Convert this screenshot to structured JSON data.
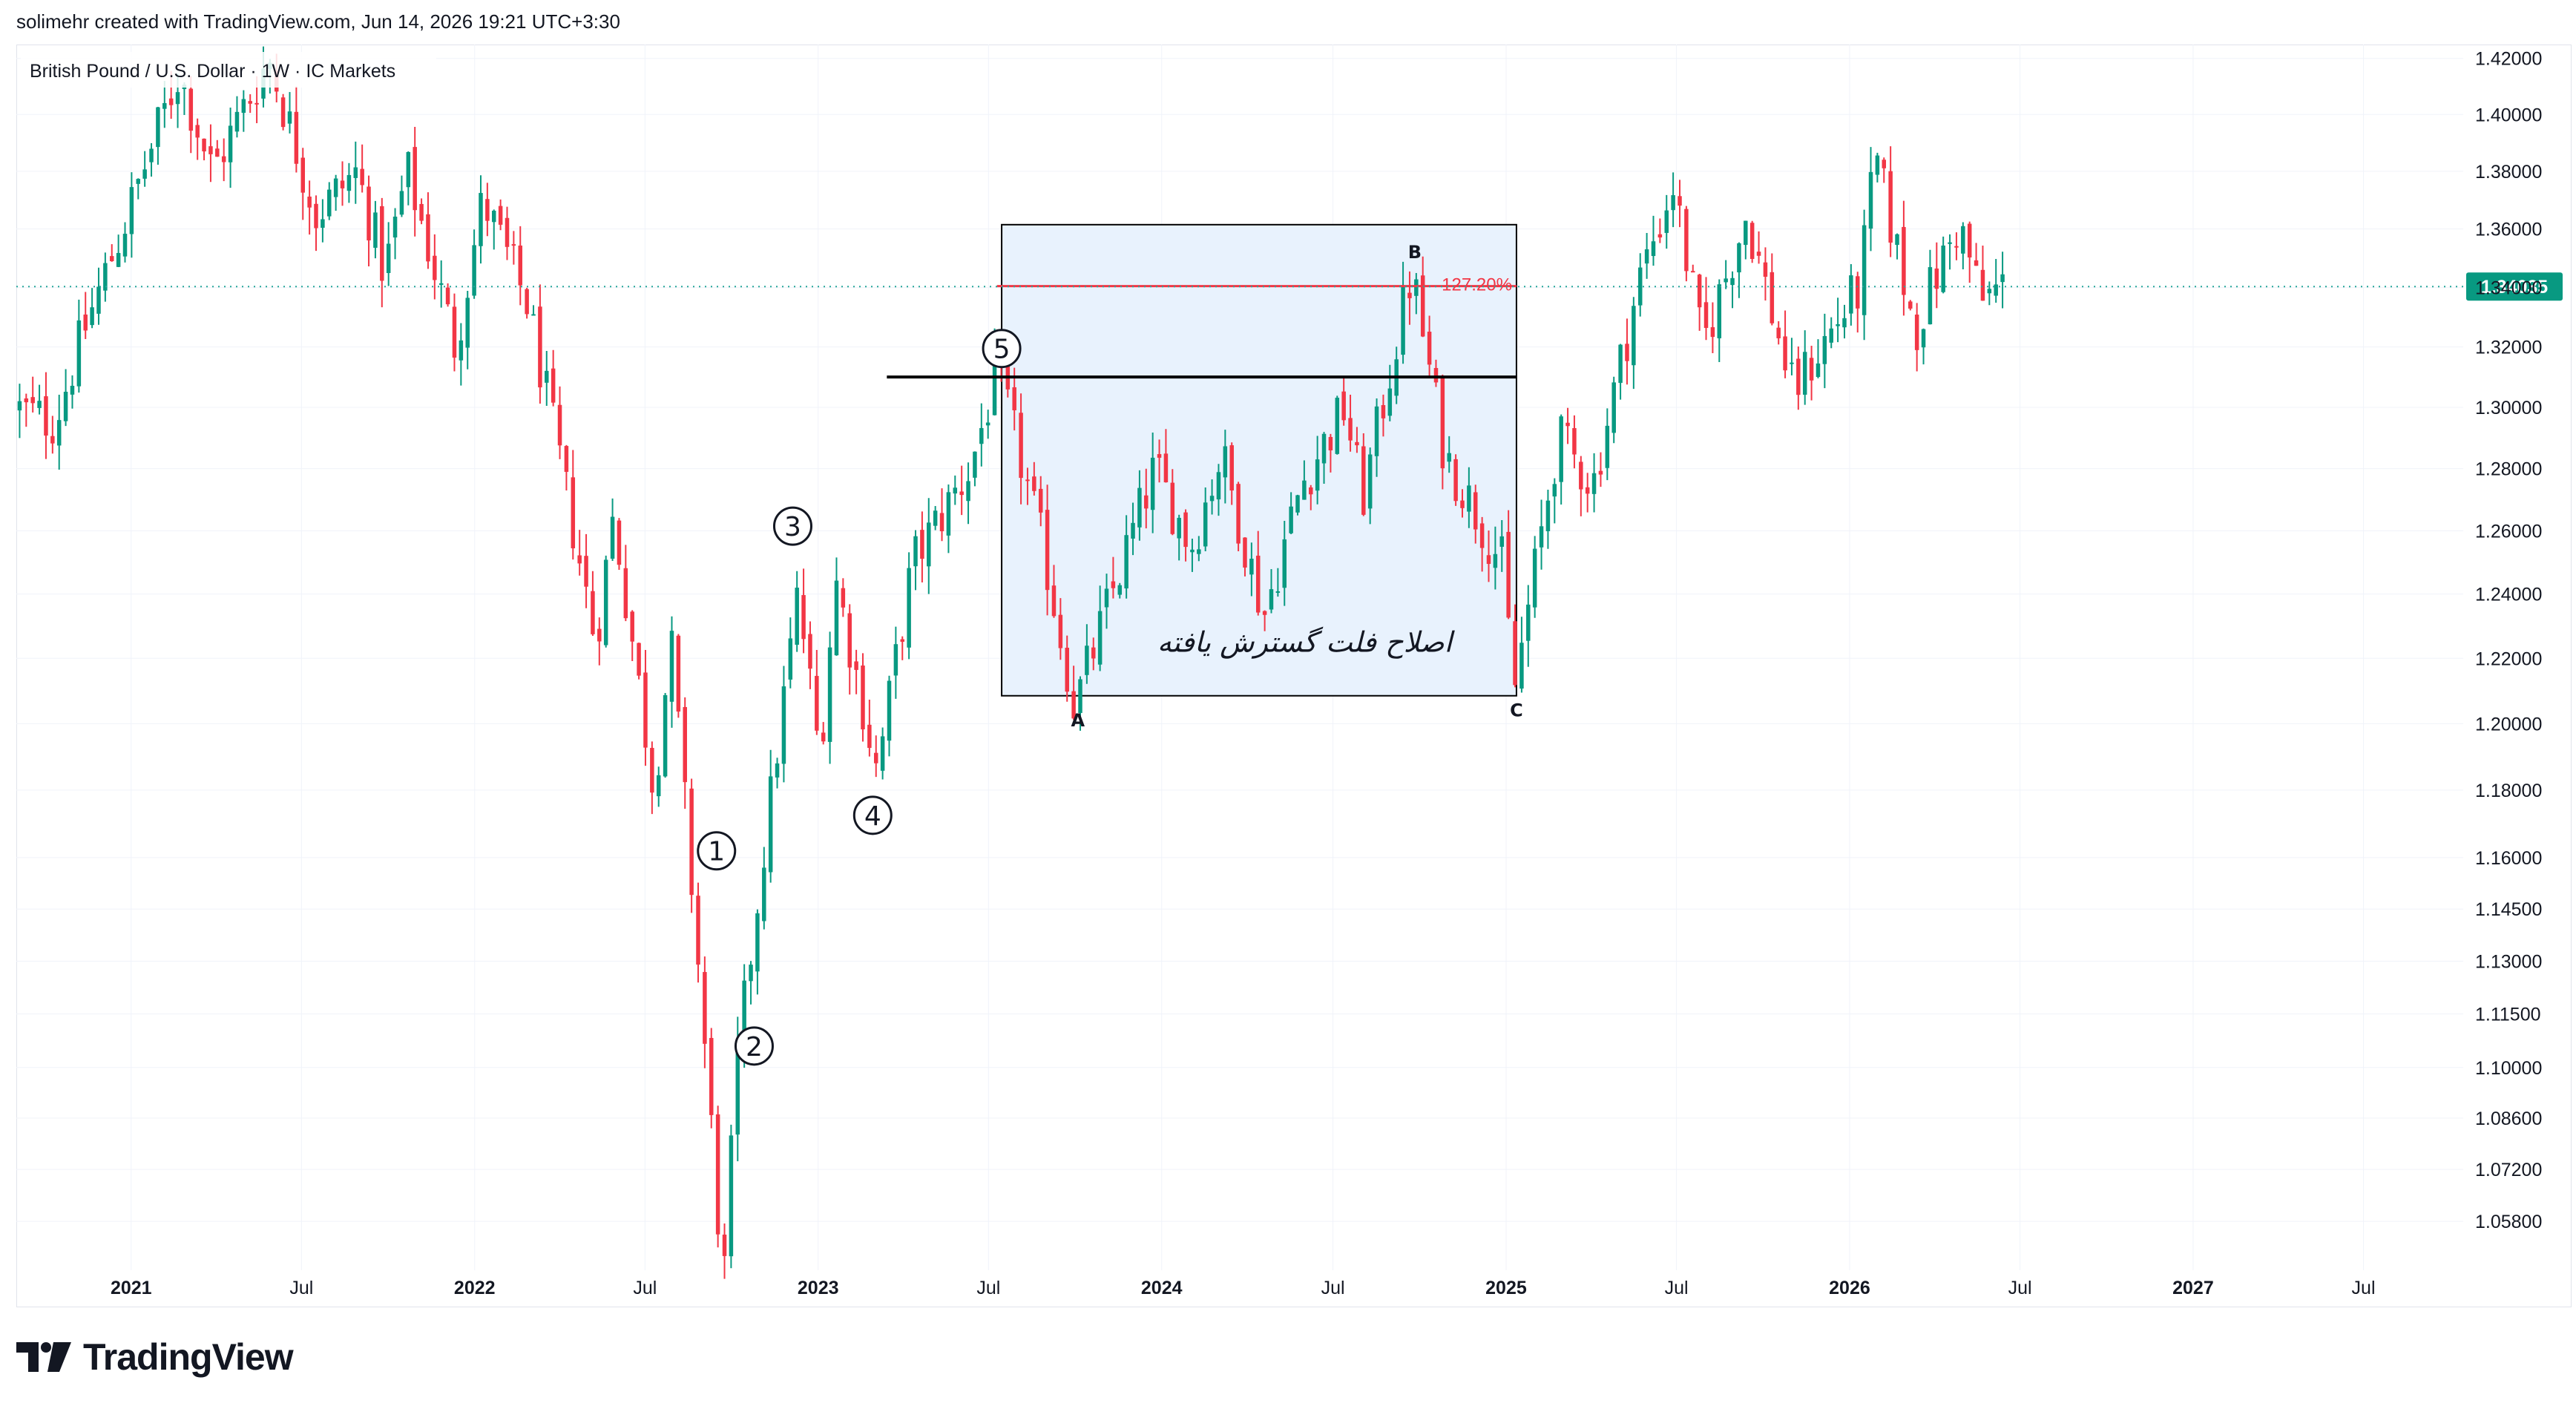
{
  "header": {
    "attribution": "solimehr created with TradingView.com, Jun 14, 2026 19:21 UTC+3:30"
  },
  "footer": {
    "brand": "TradingView",
    "logo_icon": "tradingview-logo-icon"
  },
  "colors": {
    "up": "#089981",
    "down": "#f23645",
    "last_price_label": "#089981",
    "last_price_line": "#26a69a",
    "box_fill": "#e8f2fd",
    "fib_line": "#f23645",
    "level_line": "#000000",
    "grid": "#f0f3fa",
    "axis_text": "#131722"
  },
  "chart_data": {
    "type": "candlestick",
    "title": "British Pound / U.S. Dollar · 1W · IC Markets",
    "timeframe": "1W",
    "last_price": 1.34035,
    "last_price_label": "1.34035",
    "y_axis": {
      "scale": "log",
      "range": [
        1.045,
        1.425
      ],
      "ticks": [
        "1.05800",
        "1.07200",
        "1.08600",
        "1.10000",
        "1.11500",
        "1.13000",
        "1.14500",
        "1.16000",
        "1.18000",
        "1.20000",
        "1.22000",
        "1.24000",
        "1.26000",
        "1.28000",
        "1.30000",
        "1.32000",
        "1.34000",
        "1.36000",
        "1.38000",
        "1.40000",
        "1.42000"
      ]
    },
    "x_axis": {
      "range": [
        "2020-09-01",
        "2027-10-15"
      ],
      "ticks": [
        {
          "date": "2021-01-01",
          "label": "2021"
        },
        {
          "date": "2021-07-01",
          "label": "Jul"
        },
        {
          "date": "2022-01-01",
          "label": "2022"
        },
        {
          "date": "2022-07-01",
          "label": "Jul"
        },
        {
          "date": "2023-01-01",
          "label": "2023"
        },
        {
          "date": "2023-07-01",
          "label": "Jul"
        },
        {
          "date": "2024-01-01",
          "label": "2024"
        },
        {
          "date": "2024-07-01",
          "label": "Jul"
        },
        {
          "date": "2025-01-01",
          "label": "2025"
        },
        {
          "date": "2025-07-01",
          "label": "Jul"
        },
        {
          "date": "2026-01-01",
          "label": "2026"
        },
        {
          "date": "2026-07-01",
          "label": "Jul"
        },
        {
          "date": "2027-01-01",
          "label": "2027"
        },
        {
          "date": "2027-07-01",
          "label": "Jul"
        }
      ]
    },
    "price_path": {
      "start_date": "2020-09-01",
      "end_date": "2026-06-14",
      "anchors": [
        [
          "2020-09-01",
          1.3
        ],
        [
          "2020-10-15",
          1.295
        ],
        [
          "2020-11-15",
          1.325
        ],
        [
          "2021-01-01",
          1.365
        ],
        [
          "2021-02-24",
          1.415
        ],
        [
          "2021-04-01",
          1.38
        ],
        [
          "2021-05-31",
          1.42
        ],
        [
          "2021-07-20",
          1.365
        ],
        [
          "2021-09-01",
          1.38
        ],
        [
          "2021-10-01",
          1.345
        ],
        [
          "2021-10-25",
          1.38
        ],
        [
          "2021-12-15",
          1.32
        ],
        [
          "2022-01-13",
          1.37
        ],
        [
          "2022-03-01",
          1.335
        ],
        [
          "2022-05-13",
          1.225
        ],
        [
          "2022-06-01",
          1.265
        ],
        [
          "2022-07-14",
          1.18
        ],
        [
          "2022-08-01",
          1.225
        ],
        [
          "2022-09-26",
          1.04
        ],
        [
          "2022-10-10",
          1.1
        ],
        [
          "2022-12-14",
          1.24
        ],
        [
          "2023-01-06",
          1.19
        ],
        [
          "2023-01-23",
          1.245
        ],
        [
          "2023-03-08",
          1.185
        ],
        [
          "2023-04-15",
          1.25
        ],
        [
          "2023-06-15",
          1.28
        ],
        [
          "2023-07-14",
          1.312
        ],
        [
          "2023-08-31",
          1.255
        ],
        [
          "2023-10-04",
          1.205
        ],
        [
          "2023-12-28",
          1.28
        ],
        [
          "2024-02-05",
          1.255
        ],
        [
          "2024-03-08",
          1.285
        ],
        [
          "2024-04-22",
          1.233
        ],
        [
          "2024-06-01",
          1.275
        ],
        [
          "2024-07-17",
          1.3
        ],
        [
          "2024-08-05",
          1.27
        ],
        [
          "2024-09-26",
          1.345
        ],
        [
          "2024-10-31",
          1.285
        ],
        [
          "2024-12-31",
          1.25
        ],
        [
          "2025-01-13",
          1.21
        ],
        [
          "2025-03-01",
          1.29
        ],
        [
          "2025-04-07",
          1.275
        ],
        [
          "2025-05-28",
          1.345
        ],
        [
          "2025-07-01",
          1.375
        ],
        [
          "2025-08-01",
          1.32
        ],
        [
          "2025-09-17",
          1.365
        ],
        [
          "2025-11-05",
          1.305
        ],
        [
          "2026-01-15",
          1.34
        ],
        [
          "2026-02-01",
          1.385
        ],
        [
          "2026-03-15",
          1.325
        ],
        [
          "2026-04-01",
          1.34
        ],
        [
          "2026-05-01",
          1.362
        ],
        [
          "2026-05-25",
          1.335
        ],
        [
          "2026-06-14",
          1.34035
        ]
      ]
    },
    "annotations": {
      "box": {
        "x0": "2023-07-15",
        "x1": "2025-01-12",
        "y0": 1.2085,
        "y1": 1.3615,
        "label": "اصلاح فلت گسترش یافته",
        "label_x": "2024-06-01",
        "label_y": 1.222
      },
      "level_line": {
        "x0": "2023-03-15",
        "x1": "2025-01-12",
        "y": 1.31
      },
      "fib_line": {
        "x0": "2023-07-10",
        "x1": "2025-01-12",
        "y": 1.3405,
        "label": "127.20%"
      },
      "wave_points": [
        {
          "label": "A",
          "date": "2023-10-04",
          "price": 1.201,
          "style": "letter"
        },
        {
          "label": "B",
          "date": "2024-09-26",
          "price": 1.352,
          "style": "letter"
        },
        {
          "label": "C",
          "date": "2025-01-12",
          "price": 1.204,
          "style": "letter"
        },
        {
          "label": "1",
          "date": "2022-09-15",
          "price": 1.162,
          "style": "circle"
        },
        {
          "label": "2",
          "date": "2022-10-25",
          "price": 1.106,
          "style": "circle"
        },
        {
          "label": "3",
          "date": "2022-12-05",
          "price": 1.2615,
          "style": "circle"
        },
        {
          "label": "4",
          "date": "2023-02-28",
          "price": 1.1725,
          "style": "circle"
        },
        {
          "label": "5",
          "date": "2023-07-15",
          "price": 1.3195,
          "style": "circle"
        }
      ]
    }
  }
}
